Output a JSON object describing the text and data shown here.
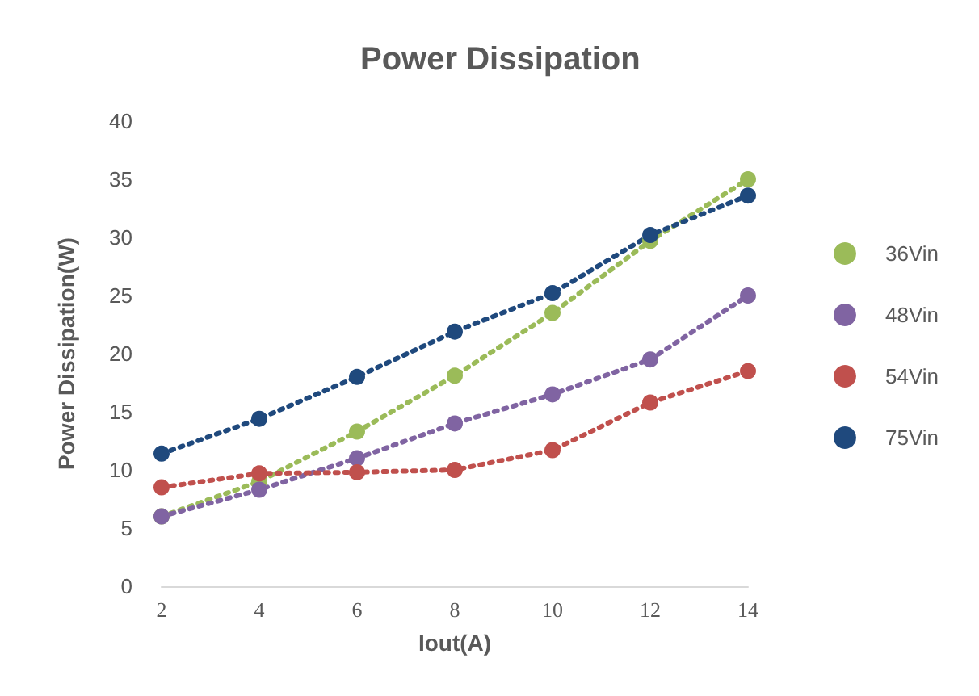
{
  "chart_data": {
    "type": "line",
    "title": "Power Dissipation",
    "xlabel": "Iout(A)",
    "ylabel": "Power Dissipation(W)",
    "x": [
      2,
      4,
      6,
      8,
      10,
      12,
      14
    ],
    "series": [
      {
        "name": "36Vin",
        "color": "#9bbb59",
        "values": [
          6.0,
          9.0,
          13.3,
          18.1,
          23.5,
          29.7,
          35.0
        ]
      },
      {
        "name": "48Vin",
        "color": "#8064a2",
        "values": [
          6.0,
          8.3,
          11.0,
          14.0,
          16.5,
          19.5,
          25.0
        ]
      },
      {
        "name": "54Vin",
        "color": "#c0504d",
        "values": [
          8.5,
          9.7,
          9.8,
          10.0,
          11.7,
          15.8,
          18.5
        ]
      },
      {
        "name": "75Vin",
        "color": "#1f497d",
        "values": [
          11.4,
          14.4,
          18.0,
          21.9,
          25.2,
          30.2,
          33.6
        ]
      }
    ],
    "xlim": [
      2,
      14
    ],
    "xticks": [
      2,
      4,
      6,
      8,
      10,
      12,
      14
    ],
    "ylim": [
      0,
      40
    ],
    "yticks": [
      0,
      5,
      10,
      15,
      20,
      25,
      30,
      35,
      40
    ],
    "grid": false,
    "legend": "right",
    "marker": "circle",
    "line_style": "dotted"
  }
}
